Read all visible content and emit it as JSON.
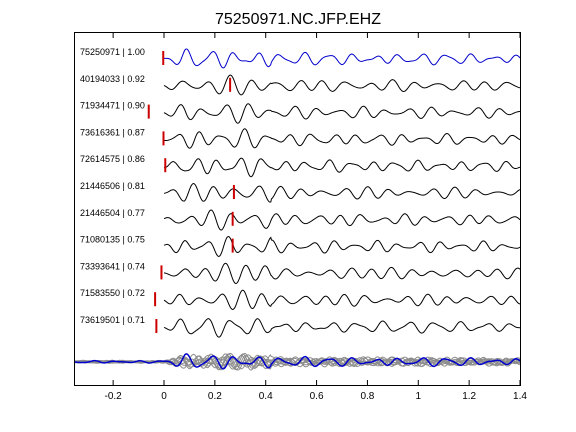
{
  "chart_data": {
    "type": "line",
    "title": "75250971.NC.JFP.EHZ",
    "xlabel": "",
    "ylabel": "",
    "xlim": [
      -0.35,
      1.4
    ],
    "x_ticks": [
      -0.2,
      0,
      0.2,
      0.4,
      0.6,
      0.8,
      1,
      1.2,
      1.4
    ],
    "x_tick_labels": [
      "-0.2",
      "0",
      "0.2",
      "0.4",
      "0.6",
      "0.8",
      "1",
      "1.2",
      "1.4"
    ],
    "grid": false,
    "colors": {
      "reference_trace": "#0000cc",
      "trace": "#000000",
      "pick_marker": "#cc0000",
      "stack_gray": "#8c8c8c",
      "stack_blue": "#0000cc"
    },
    "traces": [
      {
        "label": "75250971 | 1.00",
        "pick_time": -0.003,
        "color": "#0000cc",
        "onset": 0.0
      },
      {
        "label": "40194033 | 0.92",
        "pick_time": 0.26,
        "color": "#000000",
        "onset": 0.0
      },
      {
        "label": "71934471 | 0.90",
        "pick_time": -0.06,
        "color": "#000000",
        "onset": 0.0
      },
      {
        "label": "73616361 | 0.87",
        "pick_time": -0.002,
        "color": "#000000",
        "onset": 0.0
      },
      {
        "label": "72614575 | 0.86",
        "pick_time": 0.005,
        "color": "#000000",
        "onset": 0.0
      },
      {
        "label": "21446506 | 0.81",
        "pick_time": 0.275,
        "color": "#000000",
        "onset": 0.0
      },
      {
        "label": "21446504 | 0.77",
        "pick_time": 0.27,
        "color": "#000000",
        "onset": 0.0
      },
      {
        "label": "71080135 | 0.75",
        "pick_time": 0.27,
        "color": "#000000",
        "onset": 0.0
      },
      {
        "label": "73393641 | 0.74",
        "pick_time": -0.01,
        "color": "#000000",
        "onset": 0.0
      },
      {
        "label": "71583550 | 0.72",
        "pick_time": -0.035,
        "color": "#000000",
        "onset": 0.0
      },
      {
        "label": "73619501 | 0.71",
        "pick_time": -0.03,
        "color": "#000000",
        "onset": 0.0
      }
    ],
    "stack": {
      "label": "",
      "colors": [
        "#8c8c8c",
        "#0000cc"
      ]
    }
  }
}
